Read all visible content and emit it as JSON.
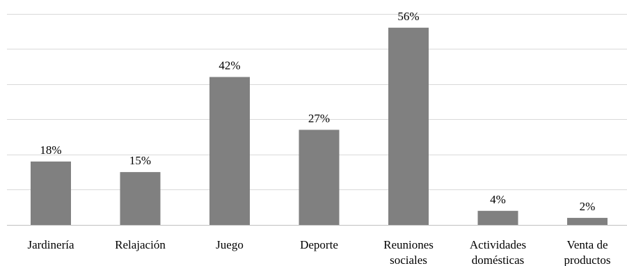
{
  "chart_data": {
    "type": "bar",
    "categories": [
      [
        "Jardinería"
      ],
      [
        "Relajación"
      ],
      [
        "Juego"
      ],
      [
        "Deporte"
      ],
      [
        "Reuniones",
        "sociales"
      ],
      [
        "Actividades",
        "domésticas"
      ],
      [
        "Venta de",
        "productos"
      ]
    ],
    "values": [
      18,
      15,
      42,
      27,
      56,
      4,
      2
    ],
    "data_labels": [
      "18%",
      "15%",
      "42%",
      "27%",
      "56%",
      "4%",
      "2%"
    ],
    "ylim": [
      0,
      60
    ],
    "gridlines": [
      0,
      10,
      20,
      30,
      40,
      50,
      60
    ],
    "grid": true,
    "legend": "none",
    "title": "",
    "xlabel": "",
    "ylabel": "",
    "colors": {
      "bar": "#808080",
      "grid": "#d9d9d9",
      "axis": "#bfbfbf",
      "text": "#000000"
    }
  }
}
